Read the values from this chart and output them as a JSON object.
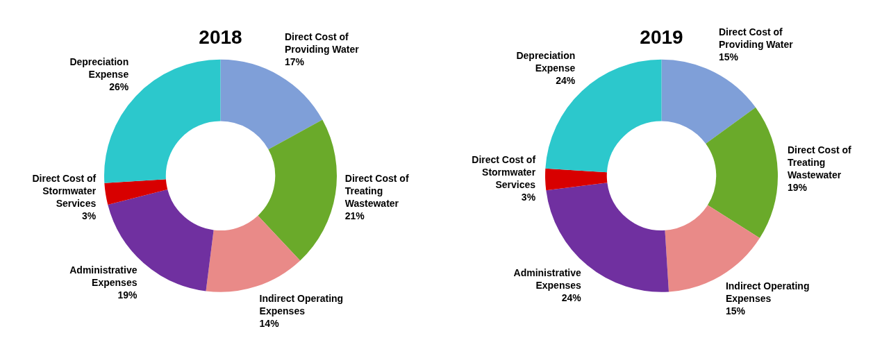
{
  "chart_data": [
    {
      "type": "donut",
      "title": "2018",
      "categories": [
        "Direct Cost of Providing Water",
        "Direct Cost of Treating Wastewater",
        "Indirect Operating Expenses",
        "Administrative Expenses",
        "Direct Cost of Stormwater Services",
        "Depreciation Expense"
      ],
      "values": [
        17,
        21,
        14,
        19,
        3,
        26
      ],
      "colors": [
        "#7f9fd8",
        "#6aaa2a",
        "#e98a88",
        "#7030a0",
        "#d80000",
        "#2cc8cc"
      ],
      "value_labels": [
        "17%",
        "21%",
        "14%",
        "19%",
        "3%",
        "26%"
      ],
      "legend": false
    },
    {
      "type": "donut",
      "title": "2019",
      "categories": [
        "Direct Cost of Providing Water",
        "Direct Cost of Treating Wastewater",
        "Indirect Operating Expenses",
        "Administrative Expenses",
        "Direct Cost of Stormwater Services",
        "Depreciation Expense"
      ],
      "values": [
        15,
        19,
        15,
        24,
        3,
        24
      ],
      "colors": [
        "#7f9fd8",
        "#6aaa2a",
        "#e98a88",
        "#7030a0",
        "#d80000",
        "#2cc8cc"
      ],
      "value_labels": [
        "15%",
        "19%",
        "15%",
        "24%",
        "3%",
        "24%"
      ],
      "legend": false
    }
  ]
}
